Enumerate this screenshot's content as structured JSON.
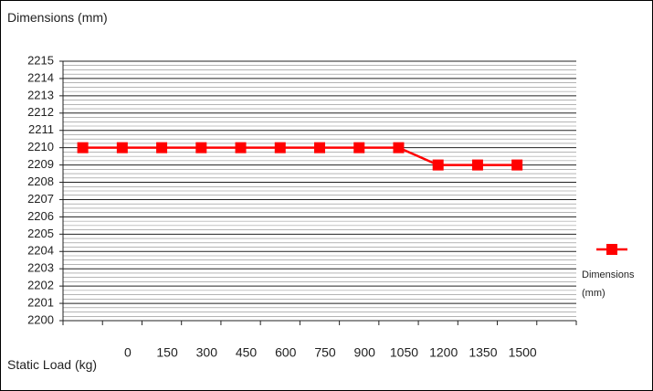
{
  "chart_data": {
    "type": "line",
    "title": "Dimensions (mm)",
    "x_label": "Static Load (kg)",
    "categories": [
      null,
      "0",
      "150",
      "300",
      "450",
      "600",
      "750",
      "900",
      "1050",
      "1200",
      "1350",
      "1500",
      null
    ],
    "series": [
      {
        "name": "Dimensions (mm)",
        "color": "#ff0000",
        "values": [
          2210,
          2210,
          2210,
          2210,
          2210,
          2210,
          2210,
          2210,
          2210,
          2209,
          2209,
          2209,
          null
        ]
      }
    ],
    "ylim": [
      2200,
      2215
    ],
    "yticks": [
      2200,
      2201,
      2202,
      2203,
      2204,
      2205,
      2206,
      2207,
      2208,
      2209,
      2210,
      2211,
      2212,
      2213,
      2214,
      2215
    ],
    "grid": true,
    "legend": "right"
  }
}
